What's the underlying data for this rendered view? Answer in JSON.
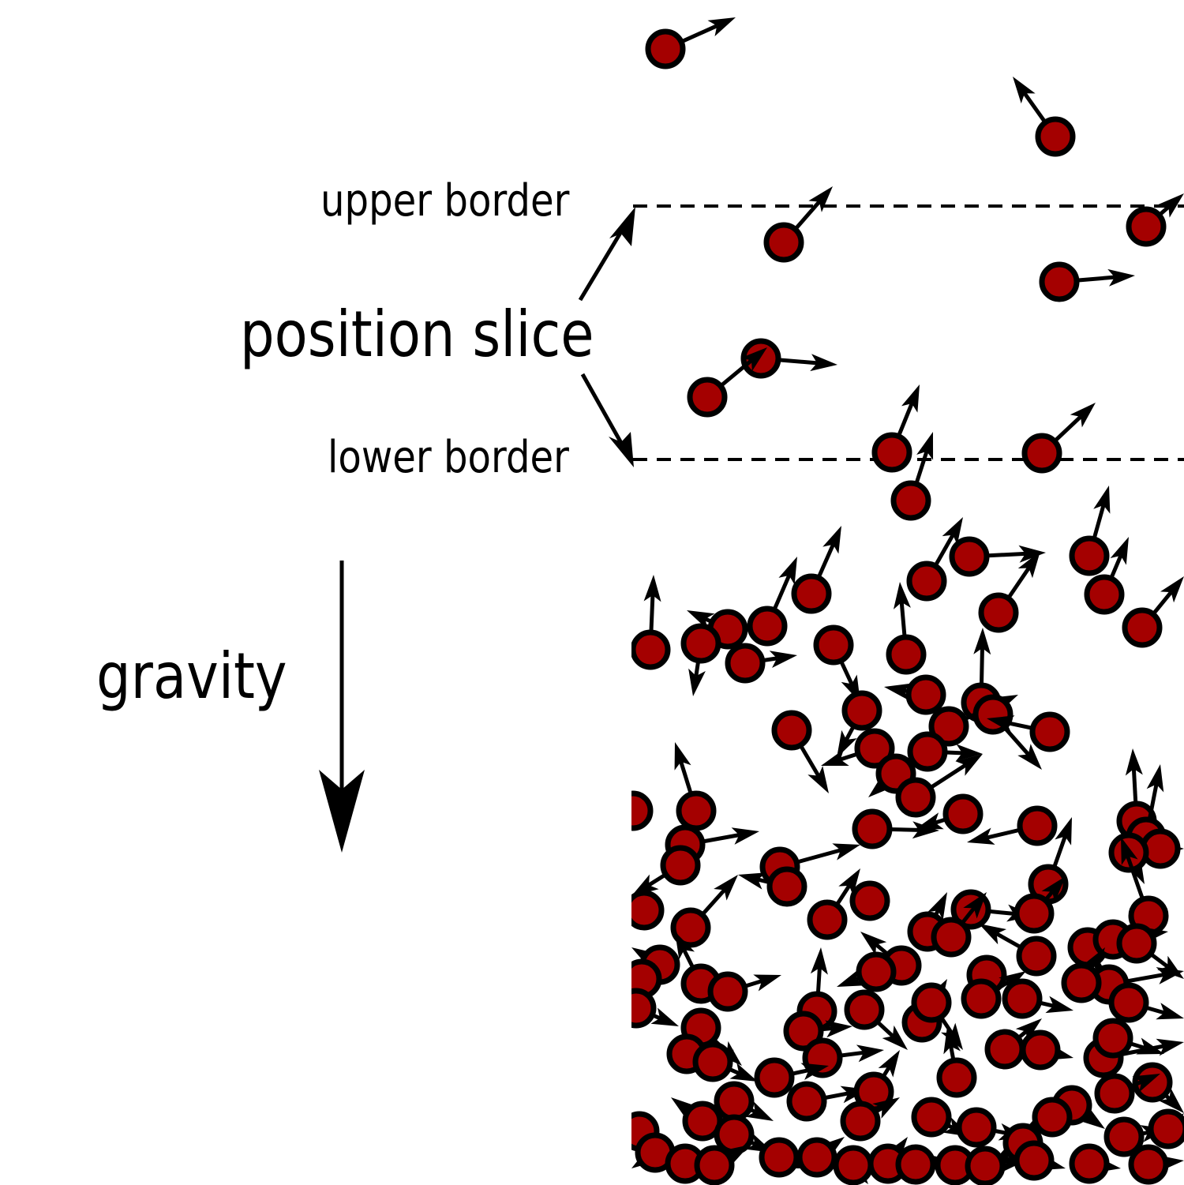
{
  "labels": {
    "upper_border": "upper border",
    "position_slice": "position slice",
    "lower_border": "lower border",
    "gravity": "gravity"
  },
  "colors": {
    "particle_fill": "#a40000",
    "stroke": "#000000",
    "background": "#ffffff"
  },
  "icons": [
    "gravity-arrow-icon",
    "pointer-arrow-icon",
    "particle-icon"
  ]
}
